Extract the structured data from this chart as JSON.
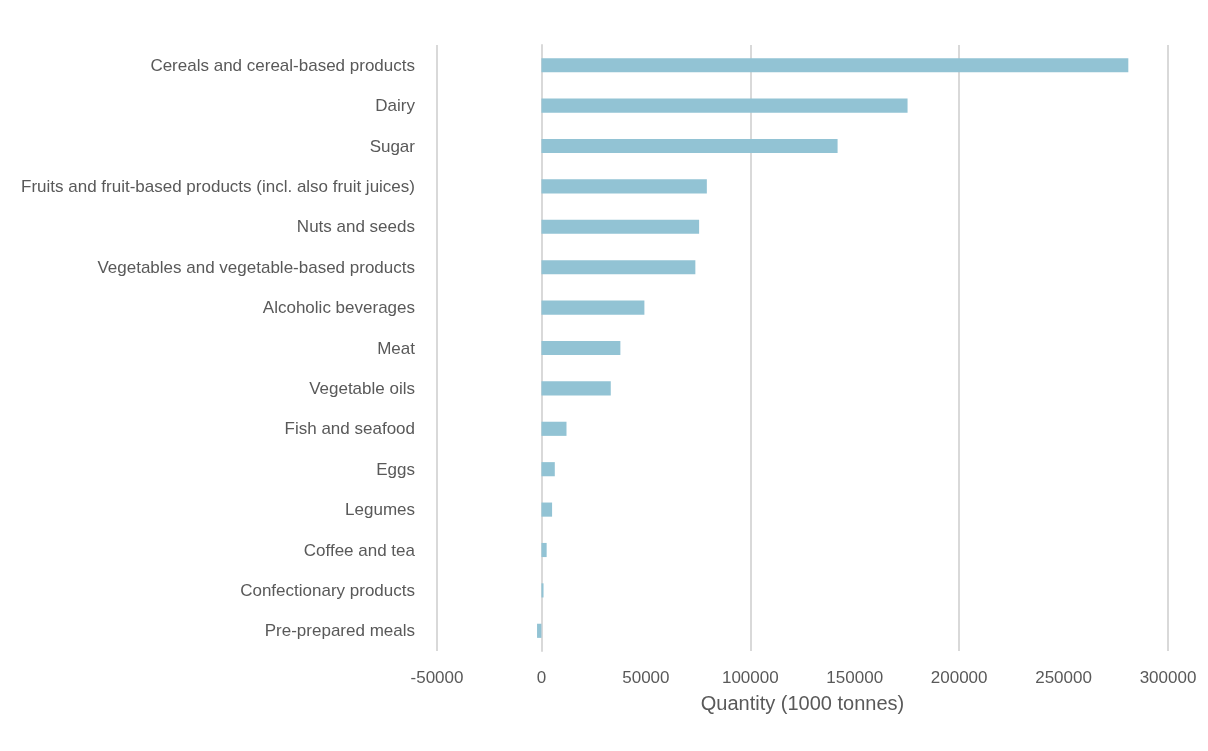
{
  "chart_data": {
    "type": "bar",
    "orientation": "horizontal",
    "xlabel": "Quantity (1000 tonnes)",
    "categories": [
      "Cereals and cereal-based products",
      "Dairy",
      "Sugar",
      "Fruits and fruit-based products (incl. also fruit juices)",
      "Nuts and seeds",
      "Vegetables and vegetable-based products",
      "Alcoholic beverages",
      "Meat",
      "Vegetable oils",
      "Fish and seafood",
      "Eggs",
      "Legumes",
      "Coffee and tea",
      "Confectionary products",
      "Pre-prepared meals"
    ],
    "values": [
      281000,
      175300,
      141800,
      79200,
      75500,
      73700,
      49300,
      37800,
      33200,
      12000,
      6400,
      5100,
      2500,
      1000,
      -2100
    ],
    "color": "#92c3d4",
    "xlim": [
      -50000,
      300000
    ],
    "xticks": [
      -50000,
      0,
      50000,
      100000,
      150000,
      200000,
      250000,
      300000
    ],
    "grid": "x"
  }
}
